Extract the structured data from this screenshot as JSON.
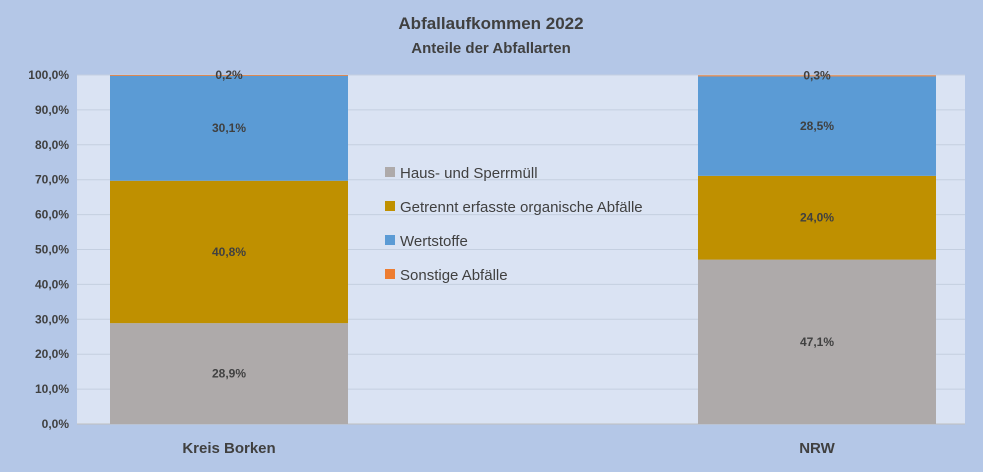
{
  "chart_data": {
    "type": "bar",
    "stacked": true,
    "title": "Abfallaufkommen  2022",
    "subtitle": "Anteile der Abfallarten",
    "categories": [
      "Kreis Borken",
      "NRW"
    ],
    "series": [
      {
        "name": "Haus- und Sperrmüll",
        "color": "#aeaaaa",
        "values": [
          28.9,
          47.1
        ],
        "labels": [
          "28,9%",
          "47,1%"
        ]
      },
      {
        "name": "Getrennt erfasste organische Abfälle",
        "color": "#bf9000",
        "values": [
          40.8,
          24.0
        ],
        "labels": [
          "40,8%",
          "24,0%"
        ]
      },
      {
        "name": "Wertstoffe",
        "color": "#5b9bd5",
        "values": [
          30.1,
          28.5
        ],
        "labels": [
          "30,1%",
          "28,5%"
        ]
      },
      {
        "name": "Sonstige Abfälle",
        "color": "#ed7d31",
        "values": [
          0.2,
          0.3
        ],
        "labels": [
          "0,2%",
          "0,3%"
        ]
      }
    ],
    "y_ticks": [
      "0,0%",
      "10,0%",
      "20,0%",
      "30,0%",
      "40,0%",
      "50,0%",
      "60,0%",
      "70,0%",
      "80,0%",
      "90,0%",
      "100,0%"
    ],
    "ylim": [
      0,
      100
    ],
    "legend_position": "center",
    "grid": true
  }
}
